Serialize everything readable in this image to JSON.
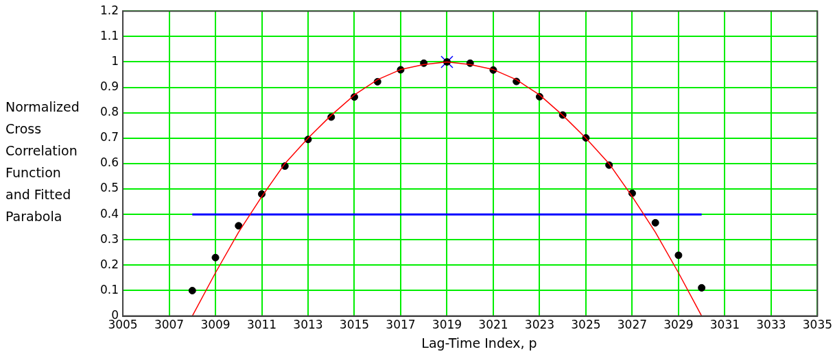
{
  "chart_data": {
    "type": "scatter",
    "xlabel": "Lag-Time Index, p",
    "ylabel": "Normalized Cross Correlation Function and Fitted Parabola",
    "xlim": [
      3005,
      3035
    ],
    "xticks": [
      3005,
      3007,
      3009,
      3011,
      3013,
      3015,
      3017,
      3019,
      3021,
      3023,
      3025,
      3027,
      3029,
      3031,
      3033,
      3035
    ],
    "ylim": [
      0,
      1.2
    ],
    "yticks": [
      0,
      0.1,
      0.2,
      0.3,
      0.4,
      0.5,
      0.6,
      0.7,
      0.8,
      0.9,
      1,
      1.1,
      1.2
    ],
    "grid": true,
    "legend": false,
    "series": [
      {
        "type": "line",
        "color": "#ff0000",
        "marker": "none",
        "line_style": "solid",
        "x": [
          3008,
          3009,
          3010,
          3011,
          3012,
          3013,
          3014,
          3015,
          3016,
          3017,
          3018,
          3019,
          3020,
          3021,
          3022,
          3023,
          3024,
          3025,
          3026,
          3027,
          3028,
          3029,
          3030
        ],
        "values": [
          0,
          0.17,
          0.33,
          0.47,
          0.6,
          0.7,
          0.79,
          0.87,
          0.93,
          0.97,
          0.99,
          1,
          0.99,
          0.97,
          0.93,
          0.87,
          0.79,
          0.7,
          0.6,
          0.47,
          0.33,
          0.17,
          0
        ]
      },
      {
        "type": "line",
        "color": "#0000ff",
        "marker": "none",
        "line_style": "solid",
        "x": [
          3008,
          3030
        ],
        "values": [
          0.4,
          0.4
        ]
      },
      {
        "type": "scatter",
        "color": "#000000",
        "marker": "circle",
        "x": [
          3008,
          3009,
          3010,
          3011,
          3012,
          3013,
          3014,
          3015,
          3016,
          3017,
          3018,
          3019,
          3020,
          3021,
          3022,
          3023,
          3024,
          3025,
          3026,
          3027,
          3028,
          3029,
          3030
        ],
        "values": [
          0.1,
          0.23,
          0.355,
          0.48,
          0.59,
          0.695,
          0.783,
          0.862,
          0.922,
          0.969,
          0.995,
          1,
          0.995,
          0.968,
          0.923,
          0.863,
          0.791,
          0.701,
          0.594,
          0.483,
          0.367,
          0.239,
          0.111
        ]
      },
      {
        "type": "scatter",
        "color": "#0000ff",
        "marker": "cross",
        "x": [
          3019
        ],
        "values": [
          1
        ]
      }
    ]
  }
}
